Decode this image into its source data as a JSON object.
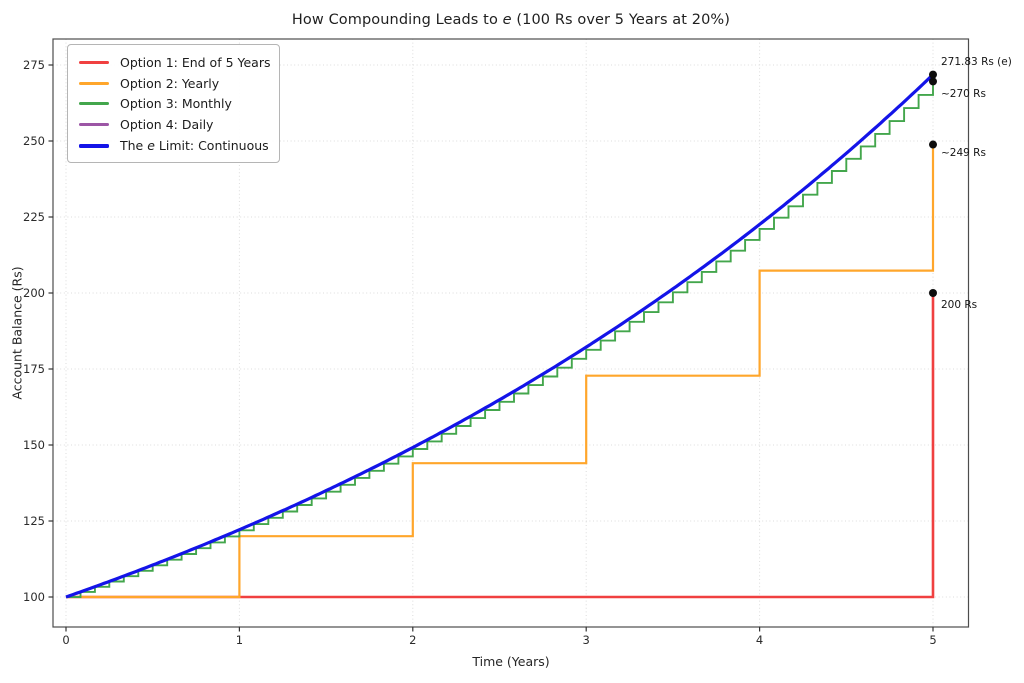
{
  "title": {
    "pre": "How Compounding Leads to ",
    "italic": "e",
    "post": " (100 Rs over 5 Years at 20%)"
  },
  "axes": {
    "x_label": "Time (Years)",
    "y_label": "Account Balance (Rs)"
  },
  "legend": {
    "items": [
      {
        "label": "Option 1: End of 5 Years",
        "color": "#f04040",
        "thick": false
      },
      {
        "label": "Option 2: Yearly",
        "color": "#ffa62b",
        "thick": false
      },
      {
        "label": "Option 3: Monthly",
        "color": "#43a64c",
        "thick": false
      },
      {
        "label": "Option 4: Daily",
        "color": "#9c56a5",
        "thick": false
      },
      {
        "pre": "The ",
        "italic": "e",
        "post": " Limit: Continuous",
        "color": "#1414e8",
        "thick": true
      }
    ]
  },
  "annotations": [
    {
      "text": "271.83 Rs (e)",
      "value": 271.83
    },
    {
      "text": "~270 Rs",
      "value": 269.6
    },
    {
      "text": "~249 Rs",
      "value": 248.83
    },
    {
      "text": "200 Rs",
      "value": 200
    }
  ],
  "chart_data": {
    "type": "line",
    "title": "How Compounding Leads to e (100 Rs over 5 Years at 20%)",
    "xlabel": "Time (Years)",
    "ylabel": "Account Balance (Rs)",
    "xlim": [
      0,
      5.2
    ],
    "ylim": [
      90,
      284
    ],
    "x_ticks": [
      0,
      1,
      2,
      3,
      4,
      5
    ],
    "y_ticks": [
      100,
      125,
      150,
      175,
      200,
      225,
      250,
      275
    ],
    "grid": true,
    "legend_position": "upper left",
    "principal": 100,
    "rate": 0.2,
    "years": 5,
    "series": [
      {
        "name": "Option 1: End of 5 Years",
        "color": "#f04040",
        "width": 2.6,
        "type": "jump_at_end",
        "points": [
          [
            0,
            100
          ],
          [
            5,
            100
          ],
          [
            5,
            200
          ]
        ],
        "final": 200
      },
      {
        "name": "Option 2: Yearly",
        "color": "#ffa62b",
        "width": 2.2,
        "type": "step",
        "compounds_per_year": 1,
        "values_at_years": [
          100,
          120,
          144,
          172.8,
          207.36,
          248.83
        ],
        "final": 248.83
      },
      {
        "name": "Option 3: Monthly",
        "color": "#43a64c",
        "width": 1.9,
        "type": "step",
        "compounds_per_year": 12,
        "final": 269.6
      },
      {
        "name": "Option 4: Daily",
        "color": "#9c56a5",
        "width": 2.0,
        "type": "smooth",
        "compounds_per_year": 365,
        "final": 271.8
      },
      {
        "name": "The e Limit: Continuous",
        "color": "#1414e8",
        "width": 3.2,
        "type": "continuous",
        "final": 271.83
      }
    ],
    "end_markers": [
      [
        5,
        271.83
      ],
      [
        5,
        269.6
      ],
      [
        5,
        248.83
      ],
      [
        5,
        200
      ]
    ]
  }
}
